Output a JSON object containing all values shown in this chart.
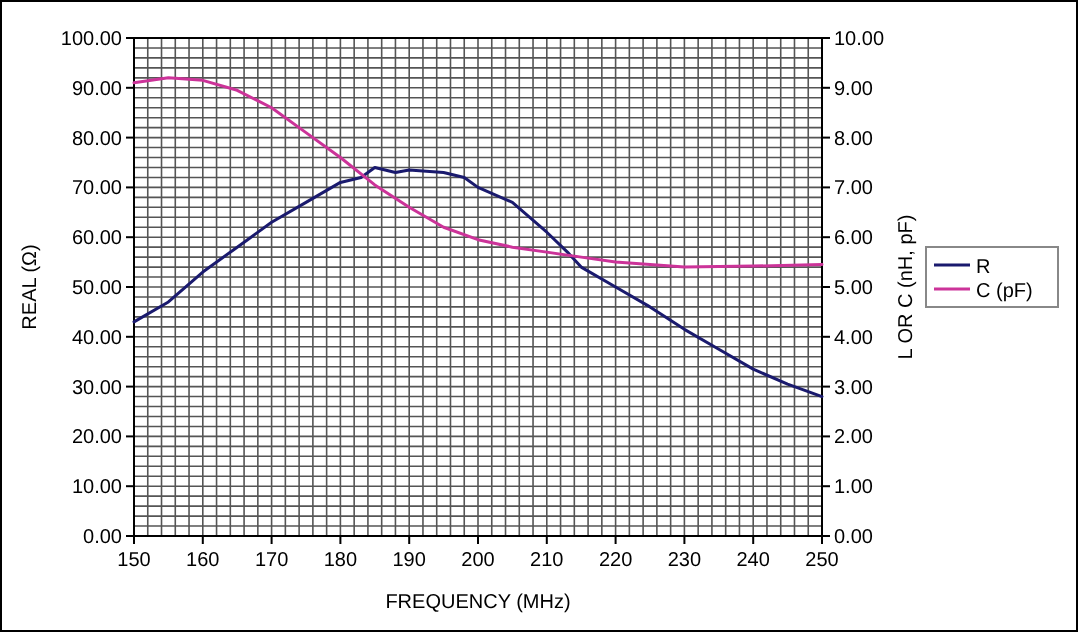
{
  "chart_data": {
    "type": "line",
    "xlabel": "FREQUENCY (MHz)",
    "ylabel": "REAL (Ω)",
    "y2label": "L OR C (nH, pF)",
    "xlim": [
      150,
      250
    ],
    "xticks": [
      150,
      160,
      170,
      180,
      190,
      200,
      210,
      220,
      230,
      240,
      250
    ],
    "ylim": [
      0,
      100
    ],
    "yticks": [
      {
        "value": 0,
        "label": "0.00"
      },
      {
        "value": 10,
        "label": "10.00"
      },
      {
        "value": 20,
        "label": "20.00"
      },
      {
        "value": 30,
        "label": "30.00"
      },
      {
        "value": 40,
        "label": "40.00"
      },
      {
        "value": 50,
        "label": "50.00"
      },
      {
        "value": 60,
        "label": "60.00"
      },
      {
        "value": 70,
        "label": "70.00"
      },
      {
        "value": 80,
        "label": "80.00"
      },
      {
        "value": 90,
        "label": "90.00"
      },
      {
        "value": 100,
        "label": "100.00"
      }
    ],
    "y2lim": [
      0,
      10
    ],
    "y2ticks": [
      {
        "value": 0,
        "label": "0.00"
      },
      {
        "value": 1,
        "label": "1.00"
      },
      {
        "value": 2,
        "label": "2.00"
      },
      {
        "value": 3,
        "label": "3.00"
      },
      {
        "value": 4,
        "label": "4.00"
      },
      {
        "value": 5,
        "label": "5.00"
      },
      {
        "value": 6,
        "label": "6.00"
      },
      {
        "value": 7,
        "label": "7.00"
      },
      {
        "value": 8,
        "label": "8.00"
      },
      {
        "value": 9,
        "label": "9.00"
      },
      {
        "value": 10,
        "label": "10.00"
      }
    ],
    "grid": true,
    "legend": "right",
    "series": [
      {
        "name": "R",
        "color": "#1a1a6e",
        "x": [
          150,
          155,
          160,
          165,
          170,
          175,
          180,
          183,
          185,
          188,
          190,
          195,
          198,
          200,
          205,
          210,
          213,
          215,
          220,
          225,
          230,
          235,
          240,
          245,
          250
        ],
        "values": [
          43,
          47,
          53,
          58,
          63,
          67,
          71,
          72,
          74,
          73,
          73.5,
          73,
          72,
          70,
          67,
          61,
          57,
          54,
          50,
          46,
          41.5,
          37.5,
          33.5,
          30.5,
          28
        ]
      },
      {
        "name": "C (pF)",
        "axis": "y2",
        "color": "#cc3399",
        "x": [
          150,
          155,
          160,
          165,
          170,
          175,
          180,
          185,
          190,
          195,
          200,
          205,
          210,
          215,
          220,
          225,
          230,
          240,
          250
        ],
        "values": [
          9.1,
          9.2,
          9.15,
          8.95,
          8.6,
          8.1,
          7.6,
          7.05,
          6.6,
          6.2,
          5.95,
          5.8,
          5.7,
          5.6,
          5.5,
          5.45,
          5.4,
          5.42,
          5.45
        ]
      }
    ]
  }
}
